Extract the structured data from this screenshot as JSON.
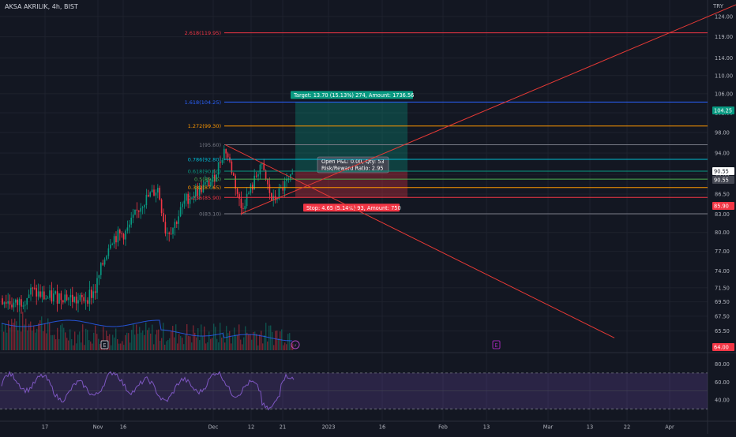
{
  "header": {
    "symbol": "AKSA AKRILIK, 4h, BIST",
    "currency": "TRY"
  },
  "chart_data": {
    "type": "candlestick",
    "interval": "4h",
    "y_axis": {
      "ylim": [
        63.0,
        127.0
      ],
      "scale": "log",
      "ticks": [
        "124.00",
        "119.00",
        "114.00",
        "110.00",
        "106.00",
        "102.00",
        "98.00",
        "94.00",
        "90.00",
        "86.50",
        "83.00",
        "80.00",
        "77.00",
        "74.00",
        "71.50",
        "69.50",
        "67.50",
        "65.50"
      ]
    },
    "x_axis": {
      "ticks": [
        "17",
        "Nov",
        "16",
        "Dec",
        "12",
        "21",
        "2023",
        "16",
        "Feb",
        "13",
        "Mar",
        "13",
        "22",
        "Apr"
      ]
    },
    "price_badges": [
      {
        "value": "104.25",
        "color": "#089981"
      },
      {
        "value": "90.55",
        "color": "#ffffff"
      },
      {
        "value": "90.55",
        "color": "#434651"
      },
      {
        "value": "85.90",
        "color": "#f23645"
      },
      {
        "value": "64.00",
        "color": "#f23645"
      }
    ],
    "fibonacci": [
      {
        "label": "2.618(119.95)",
        "ratio": 2.618,
        "price": 119.95,
        "color": "#f23645"
      },
      {
        "label": "1.618(104.25)",
        "ratio": 1.618,
        "price": 104.25,
        "color": "#2962ff"
      },
      {
        "label": "1.272(99.30)",
        "ratio": 1.272,
        "price": 99.3,
        "color": "#ff9800"
      },
      {
        "label": "1(95.60)",
        "ratio": 1,
        "price": 95.6,
        "color": "#787b86"
      },
      {
        "label": "0.786(92.80)",
        "ratio": 0.786,
        "price": 92.8,
        "color": "#00bcd4"
      },
      {
        "label": "0.618(90.60)",
        "ratio": 0.618,
        "price": 90.6,
        "color": "#089981"
      },
      {
        "label": "0.5(89.15)",
        "ratio": 0.5,
        "price": 89.15,
        "color": "#4caf50"
      },
      {
        "label": "0.382(87.65)",
        "ratio": 0.382,
        "price": 87.65,
        "color": "#ff9800"
      },
      {
        "label": "0.236(85.90)",
        "ratio": 0.236,
        "price": 85.9,
        "color": "#f23645"
      },
      {
        "label": "0(83.10)",
        "ratio": 0,
        "price": 83.1,
        "color": "#787b86"
      }
    ],
    "position_tool": {
      "entry": 90.55,
      "target": 104.25,
      "stop": 85.9,
      "target_label": "Target: 13.70 (15.13%) 274, Amount: 1736.56",
      "stop_label": "Stop: 4.65 (5.14%) 93, Amount: 750",
      "info_lines": [
        "Open P&L: 0.00, Qty: 53",
        "Risk/Reward Ratio: 2.95"
      ]
    },
    "events": [
      {
        "label": "E"
      },
      {
        "label": "E"
      }
    ],
    "rsi": {
      "ticks": [
        "80.00",
        "60.00",
        "40.00"
      ],
      "upper_band": 70,
      "lower_band": 30,
      "ylim": [
        20,
        90
      ]
    },
    "colors": {
      "background": "#131722",
      "grid": "#1e222d",
      "up": "#089981",
      "down": "#f23645",
      "trend": "#e53935",
      "rsi": "#7e57c2",
      "volume_ma": "#2962ff"
    }
  }
}
